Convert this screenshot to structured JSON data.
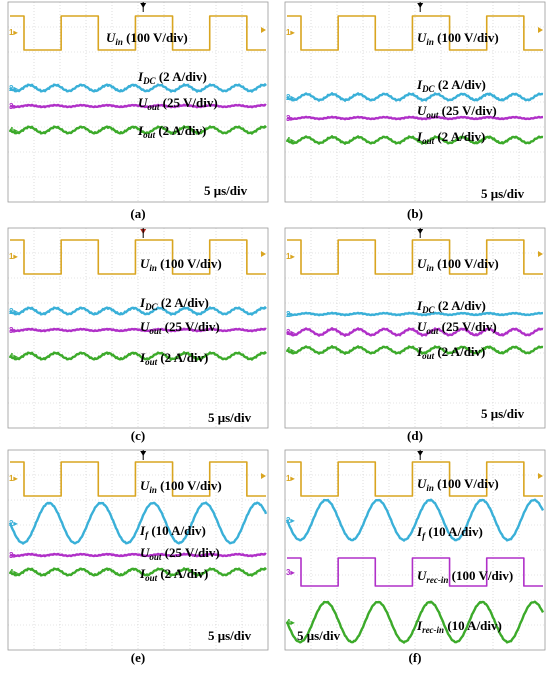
{
  "colors": {
    "ch1": "#d9a520",
    "ch2": "#3ab0d8",
    "ch3": "#b030c8",
    "ch4": "#3caa2a",
    "trigger": "#000000",
    "trigger_red": "#b0281e"
  },
  "panels": [
    {
      "id": "a",
      "panel_label": "(a)",
      "timebase": "5 μs/div",
      "traces": [
        {
          "channel": 1,
          "kind": "square",
          "sym": "U",
          "sub": "in",
          "scale": " (100 V/div)"
        },
        {
          "channel": 2,
          "kind": "ripple",
          "sym": "I",
          "sub": "DC",
          "scale": " (2 A/div)"
        },
        {
          "channel": 3,
          "kind": "flat",
          "sym": "U",
          "sub": "out",
          "scale": " (25 V/div)"
        },
        {
          "channel": 4,
          "kind": "ripple",
          "sym": "I",
          "sub": "out",
          "scale": " (2 A/div)"
        }
      ]
    },
    {
      "id": "b",
      "panel_label": "(b)",
      "timebase": "5 μs/div",
      "traces": [
        {
          "channel": 1,
          "kind": "square",
          "sym": "U",
          "sub": "in",
          "scale": " (100 V/div)"
        },
        {
          "channel": 2,
          "kind": "ripple",
          "sym": "I",
          "sub": "DC",
          "scale": " (2 A/div)"
        },
        {
          "channel": 3,
          "kind": "flat",
          "sym": "U",
          "sub": "out",
          "scale": " (25 V/div)"
        },
        {
          "channel": 4,
          "kind": "ripple",
          "sym": "I",
          "sub": "out",
          "scale": " (2 A/div)"
        }
      ]
    },
    {
      "id": "c",
      "panel_label": "(c)",
      "timebase": "5 μs/div",
      "traces": [
        {
          "channel": 1,
          "kind": "square",
          "sym": "U",
          "sub": "in",
          "scale": " (100 V/div)"
        },
        {
          "channel": 2,
          "kind": "ripple",
          "sym": "I",
          "sub": "DC",
          "scale": " (2 A/div)"
        },
        {
          "channel": 3,
          "kind": "flat",
          "sym": "U",
          "sub": "out",
          "scale": " (25 V/div)"
        },
        {
          "channel": 4,
          "kind": "ripple",
          "sym": "I",
          "sub": "out",
          "scale": " (2 A/div)"
        }
      ]
    },
    {
      "id": "d",
      "panel_label": "(d)",
      "timebase": "5 μs/div",
      "traces": [
        {
          "channel": 1,
          "kind": "square",
          "sym": "U",
          "sub": "in",
          "scale": " (100 V/div)"
        },
        {
          "channel": 2,
          "kind": "flat",
          "sym": "I",
          "sub": "DC",
          "scale": " (2 A/div)"
        },
        {
          "channel": 3,
          "kind": "ripple",
          "sym": "U",
          "sub": "out",
          "scale": " (25 V/div)"
        },
        {
          "channel": 4,
          "kind": "ripple",
          "sym": "I",
          "sub": "out",
          "scale": " (2 A/div)"
        }
      ]
    },
    {
      "id": "e",
      "panel_label": "(e)",
      "timebase": "5 μs/div",
      "traces": [
        {
          "channel": 1,
          "kind": "square",
          "sym": "U",
          "sub": "in",
          "scale": " (100 V/div)"
        },
        {
          "channel": 2,
          "kind": "sine",
          "sym": "I",
          "sub": "f",
          "scale": " (10 A/div)"
        },
        {
          "channel": 3,
          "kind": "flat",
          "sym": "U",
          "sub": "out",
          "scale": " (25 V/div)"
        },
        {
          "channel": 4,
          "kind": "ripple",
          "sym": "I",
          "sub": "out",
          "scale": " (2 A/div)"
        }
      ]
    },
    {
      "id": "f",
      "panel_label": "(f)",
      "timebase": "5 μs/div",
      "traces": [
        {
          "channel": 1,
          "kind": "square",
          "sym": "U",
          "sub": "in",
          "scale": " (100 V/div)"
        },
        {
          "channel": 2,
          "kind": "sine",
          "sym": "I",
          "sub": "f",
          "scale": " (10 A/div)"
        },
        {
          "channel": 3,
          "kind": "square",
          "sym": "U",
          "sub": "rec-in",
          "scale": " (100 V/div)"
        },
        {
          "channel": 4,
          "kind": "sine",
          "sym": "I",
          "sub": "rec-in",
          "scale": " (10 A/div)"
        }
      ]
    }
  ]
}
